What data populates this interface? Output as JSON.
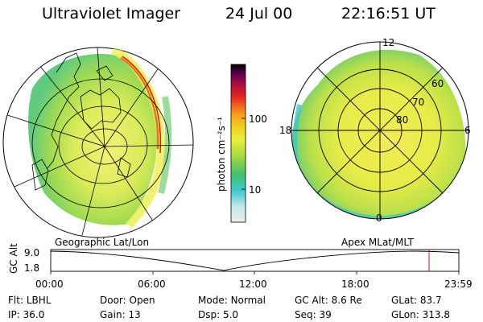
{
  "header": {
    "instrument": "Ultraviolet Imager",
    "date": "24 Jul 00",
    "time": "22:16:51 UT"
  },
  "left_panel": {
    "caption": "Geographic Lat/Lon"
  },
  "right_panel": {
    "caption": "Apex MLat/MLT",
    "lat_labels": [
      "60",
      "70",
      "80"
    ],
    "mlt_labels": {
      "top": "12",
      "right": "6",
      "bottom": "0",
      "left": "18"
    }
  },
  "colorbar": {
    "unit_label": "photon cm⁻²s⁻¹",
    "tick_labels": [
      "100",
      "10"
    ],
    "scale": "log",
    "colors": [
      "#e8e8e8",
      "#b8e8e8",
      "#40c8d0",
      "#40c070",
      "#a8d840",
      "#e8f040",
      "#f0e020",
      "#f8b020",
      "#f07020",
      "#e02020",
      "#b01040",
      "#700050",
      "#300040",
      "#000000"
    ]
  },
  "altitude_plot": {
    "ylabel": "GC Alt",
    "y_ticks": [
      "9.0",
      "1.8"
    ],
    "x_ticks": [
      "00:00",
      "06:00",
      "12:00",
      "18:00",
      "23:59"
    ],
    "marker_time": "22:16:51",
    "marker_color": "#d01010"
  },
  "info_table": [
    [
      {
        "k": "Flt:",
        "v": "LBHL"
      },
      {
        "k": "Door:",
        "v": "Open"
      },
      {
        "k": "Mode:",
        "v": "Normal"
      },
      {
        "k": "GC Alt:",
        "v": "8.6 Re"
      },
      {
        "k": "GLat:",
        "v": "83.7"
      }
    ],
    [
      {
        "k": "IP:",
        "v": "36.0"
      },
      {
        "k": "Gain:",
        "v": "13"
      },
      {
        "k": "Dsp:",
        "v": "5.0"
      },
      {
        "k": "Seq:",
        "v": "39"
      },
      {
        "k": "GLon:",
        "v": "313.8"
      }
    ]
  ]
}
